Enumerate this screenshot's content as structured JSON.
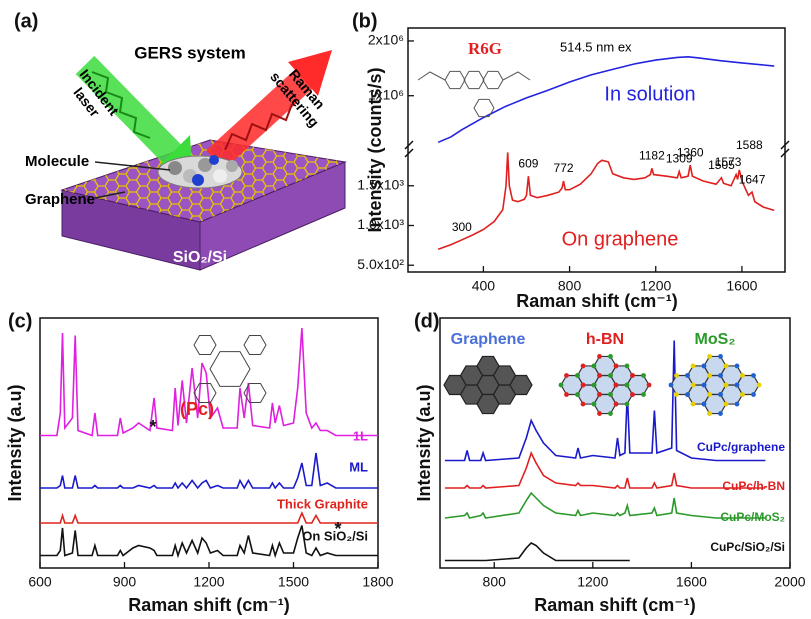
{
  "panel_a": {
    "label": "(a)",
    "title": "GERS system",
    "incident_laser": [
      "Incident",
      "laser"
    ],
    "raman_scattering": [
      "Raman",
      "scattering"
    ],
    "molecule": "Molecule",
    "graphene": "Graphene",
    "substrate": "SiO₂/Si"
  },
  "chart_data": [
    {
      "type": "line",
      "panel_label": "(b)",
      "x_label": "Raman shift (cm⁻¹)",
      "y_label": "Intensity (counts/s)",
      "molecule_label": "R6G",
      "annotation": "514.5 nm ex",
      "xlim": [
        50,
        1800
      ],
      "xticks": [
        400,
        800,
        1200,
        1600
      ],
      "ylim": [
        440,
        1950
      ],
      "yticks": [
        {
          "value": 500,
          "label": "5.0x10²"
        },
        {
          "value": 1000,
          "label": "1.0x10³"
        },
        {
          "value": 1500,
          "label": "1.5x10³"
        }
      ],
      "y2lim": [
        100000,
        2200000
      ],
      "y2ticks": [
        {
          "value": 1000000,
          "label": "1x10⁶"
        },
        {
          "value": 2000000,
          "label": "2x10⁶"
        }
      ],
      "peak_labels": [
        300,
        609,
        772,
        1182,
        1309,
        1360,
        1505,
        1573,
        1588,
        1647
      ],
      "series": [
        {
          "name": "In solution",
          "color": "#2323e0",
          "axis": "y2",
          "x": [
            190,
            250,
            300,
            400,
            500,
            600,
            700,
            800,
            900,
            1000,
            1100,
            1200,
            1300,
            1350,
            1400,
            1500,
            1600,
            1700,
            1750
          ],
          "values": [
            150000,
            250000,
            380000,
            600000,
            800000,
            960000,
            1100000,
            1250000,
            1380000,
            1480000,
            1580000,
            1650000,
            1700000,
            1710000,
            1690000,
            1640000,
            1600000,
            1560000,
            1540000
          ]
        },
        {
          "name": "On graphene",
          "color": "#e02020",
          "x": [
            190,
            250,
            300,
            350,
            400,
            450,
            490,
            505,
            513,
            520,
            535,
            560,
            590,
            600,
            609,
            618,
            650,
            700,
            750,
            765,
            772,
            780,
            800,
            850,
            900,
            930,
            950,
            980,
            1000,
            1050,
            1100,
            1150,
            1175,
            1182,
            1190,
            1250,
            1300,
            1309,
            1318,
            1350,
            1360,
            1370,
            1420,
            1480,
            1505,
            1515,
            1550,
            1573,
            1580,
            1588,
            1600,
            1630,
            1647,
            1660,
            1700,
            1750
          ],
          "values": [
            700,
            760,
            820,
            880,
            950,
            1050,
            1200,
            1500,
            1920,
            1500,
            1320,
            1300,
            1330,
            1380,
            1620,
            1380,
            1350,
            1380,
            1420,
            1470,
            1560,
            1450,
            1450,
            1520,
            1650,
            1780,
            1820,
            1800,
            1650,
            1600,
            1580,
            1600,
            1640,
            1720,
            1640,
            1620,
            1600,
            1680,
            1600,
            1620,
            1760,
            1620,
            1560,
            1520,
            1600,
            1530,
            1500,
            1640,
            1580,
            1700,
            1560,
            1380,
            1420,
            1300,
            1230,
            1190
          ]
        }
      ]
    },
    {
      "type": "line",
      "panel_label": "(c)",
      "x_label": "Raman shift (cm⁻¹)",
      "y_label": "Intensity (a.u)",
      "annotations": [
        "(Pc)",
        "*",
        "*"
      ],
      "xlim": [
        600,
        1800
      ],
      "xticks": [
        600,
        900,
        1200,
        1500,
        1800
      ],
      "ylim": [
        0,
        100
      ],
      "x": [
        600,
        660,
        672,
        680,
        688,
        715,
        725,
        735,
        785,
        795,
        805,
        875,
        885,
        895,
        930,
        950,
        990,
        1005,
        1015,
        1070,
        1080,
        1090,
        1105,
        1120,
        1140,
        1160,
        1175,
        1190,
        1205,
        1230,
        1250,
        1300,
        1310,
        1325,
        1340,
        1355,
        1415,
        1425,
        1435,
        1450,
        1465,
        1500,
        1515,
        1530,
        1545,
        1565,
        1580,
        1595,
        1620,
        1650,
        1700,
        1800
      ],
      "series": [
        {
          "name": "1L",
          "color": "#e020e0",
          "values": [
            53,
            53,
            62,
            94,
            56,
            60,
            93,
            55,
            53,
            62,
            53,
            53,
            60,
            54,
            56,
            58,
            55,
            68,
            56,
            55,
            72,
            57,
            75,
            58,
            80,
            60,
            82,
            78,
            60,
            64,
            56,
            56,
            72,
            60,
            74,
            57,
            56,
            66,
            58,
            65,
            57,
            58,
            72,
            96,
            62,
            56,
            58,
            55,
            55,
            53,
            53,
            53
          ]
        },
        {
          "name": "ML",
          "color": "#1a1acc",
          "values": [
            32,
            32,
            33,
            37,
            32,
            32,
            37,
            32,
            32,
            33,
            32,
            32,
            33,
            32,
            32,
            33,
            32,
            33,
            32,
            32,
            34,
            32,
            34,
            32,
            35,
            32,
            34,
            35,
            32,
            33,
            32,
            32,
            35,
            32,
            35,
            32,
            32,
            34,
            32,
            34,
            32,
            32,
            36,
            42,
            33,
            33,
            46,
            33,
            34,
            32,
            32,
            32
          ]
        },
        {
          "name": "Thick Graphite",
          "color": "#e0231c",
          "values": [
            18,
            18,
            18,
            21,
            18,
            18,
            21,
            18,
            18,
            18,
            18,
            18,
            18,
            18,
            18,
            18,
            18,
            18,
            18,
            18,
            18,
            18,
            18,
            18,
            18,
            18,
            18,
            18,
            18,
            18,
            18,
            18,
            18,
            18,
            18,
            18,
            18,
            18,
            18,
            18,
            18,
            18,
            18,
            22,
            18,
            18,
            21,
            18,
            18,
            18,
            18,
            18
          ]
        },
        {
          "name": "On SiO₂/Si",
          "color": "#111111",
          "values": [
            5,
            5,
            7,
            16,
            5,
            6,
            15,
            5,
            5,
            9,
            5,
            5,
            7,
            5,
            8,
            9,
            8,
            7,
            5,
            5,
            9,
            5,
            10,
            6,
            11,
            6,
            12,
            10,
            6,
            7,
            5,
            5,
            9,
            6,
            13,
            6,
            5,
            9,
            5,
            10,
            6,
            6,
            12,
            17,
            6,
            5,
            8,
            5,
            6,
            5,
            5,
            5
          ]
        }
      ]
    },
    {
      "type": "line",
      "panel_label": "(d)",
      "x_label": "Raman shift (cm⁻¹)",
      "y_label": "Intensity (a.u)",
      "materials": [
        {
          "name": "Graphene",
          "color": "#4a6fd8"
        },
        {
          "name": "h-BN",
          "color": "#e02020"
        },
        {
          "name": "MoS₂",
          "color": "#2a9a2a"
        }
      ],
      "xlim": [
        580,
        2000
      ],
      "xticks": [
        800,
        1200,
        1600,
        2000
      ],
      "ylim": [
        0,
        100
      ],
      "x": [
        600,
        680,
        690,
        700,
        745,
        755,
        765,
        900,
        930,
        950,
        970,
        1000,
        1050,
        1130,
        1140,
        1150,
        1200,
        1290,
        1300,
        1310,
        1330,
        1340,
        1350,
        1440,
        1450,
        1460,
        1520,
        1530,
        1540,
        1600,
        1700,
        1800,
        1900
      ],
      "series": [
        {
          "name": "CuPc/graphene",
          "color": "#1a1acc",
          "values": [
            43,
            43,
            47,
            43,
            43,
            46,
            43,
            44,
            52,
            59,
            55,
            50,
            45,
            44,
            48,
            44,
            45,
            44,
            52,
            45,
            46,
            70,
            46,
            46,
            63,
            46,
            48,
            91,
            47,
            44,
            43,
            43,
            43
          ]
        },
        {
          "name": "CuPc/h-BN",
          "color": "#e02020",
          "values": [
            32,
            32,
            33,
            32,
            32,
            33,
            32,
            33,
            40,
            46,
            42,
            37,
            34,
            33,
            34,
            33,
            33,
            32,
            33,
            32,
            32,
            36,
            32,
            32,
            34,
            32,
            33,
            38,
            33,
            32,
            32,
            32,
            32
          ]
        },
        {
          "name": "CuPc/MoS₂",
          "color": "#2a9a2a",
          "values": [
            20,
            21,
            22,
            20,
            21,
            22,
            20,
            22,
            27,
            30,
            28,
            25,
            22,
            21,
            23,
            21,
            22,
            21,
            22,
            21,
            22,
            25,
            21,
            22,
            24,
            21,
            22,
            28,
            22,
            21,
            20,
            20,
            20
          ]
        },
        {
          "name": "CuPc/SiO₂/Si",
          "color": "#111111",
          "values": [
            3,
            3,
            3,
            3,
            3,
            3,
            3,
            4,
            8,
            10,
            9,
            6,
            3,
            3,
            3,
            3,
            3,
            3,
            3,
            3,
            3,
            3,
            3,
            null,
            null,
            null,
            null,
            null,
            null,
            null,
            null,
            null,
            null
          ]
        }
      ]
    }
  ]
}
